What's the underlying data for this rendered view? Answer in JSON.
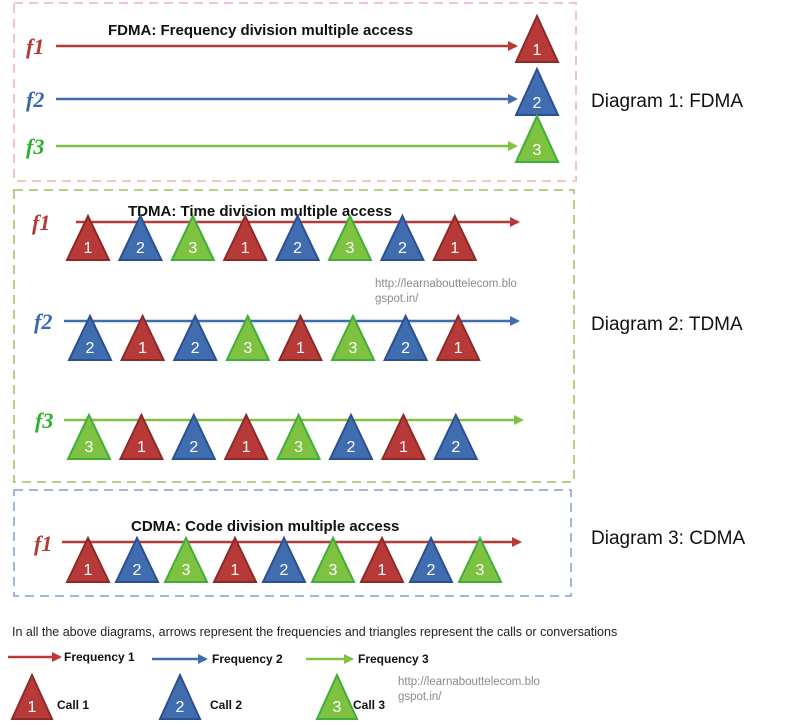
{
  "colors": {
    "call1": "#b83a38",
    "call2": "#3f6db0",
    "call3": "#7fc242",
    "fdma_box": "#f2c4c4",
    "tdma_box": "#b5cf86",
    "cdma_box": "#9db8dc",
    "f1": "#b33a36",
    "f2": "#3a67ad",
    "f3": "#2bb22b"
  },
  "fdma": {
    "title": "FDMA: Frequency division multiple access",
    "side_label": "Diagram 1: FDMA",
    "rows": [
      {
        "label": "f1",
        "calls": [
          1
        ]
      },
      {
        "label": "f2",
        "calls": [
          2
        ]
      },
      {
        "label": "f3",
        "calls": [
          3
        ]
      }
    ]
  },
  "tdma": {
    "title": "TDMA: Time division multiple access",
    "side_label": "Diagram 2: TDMA",
    "watermark_line1": "http://learnabouttelecom.blo",
    "watermark_line2": "gspot.in/",
    "rows": [
      {
        "label": "f1",
        "calls": [
          1,
          2,
          3,
          1,
          2,
          3,
          2,
          1
        ]
      },
      {
        "label": "f2",
        "calls": [
          2,
          1,
          2,
          3,
          1,
          3,
          2,
          1
        ]
      },
      {
        "label": "f3",
        "calls": [
          3,
          1,
          2,
          1,
          3,
          2,
          1,
          2
        ]
      }
    ]
  },
  "cdma": {
    "title": "CDMA: Code division multiple access",
    "side_label": "Diagram 3: CDMA",
    "rows": [
      {
        "label": "f1",
        "calls": [
          1,
          2,
          3,
          1,
          2,
          3,
          1,
          2,
          3
        ]
      }
    ]
  },
  "legend": {
    "caption": "In all the above diagrams, arrows represent the frequencies and triangles represent the calls or conversations",
    "frequencies": [
      {
        "label": "Frequency 1",
        "color_key": "call1"
      },
      {
        "label": "Frequency 2",
        "color_key": "call2"
      },
      {
        "label": "Frequency 3",
        "color_key": "call3"
      }
    ],
    "calls": [
      {
        "label": "Call 1",
        "number": "1"
      },
      {
        "label": "Call 2",
        "number": "2"
      },
      {
        "label": "Call 3",
        "number": "3"
      }
    ],
    "watermark_line1": "http://learnabouttelecom.blo",
    "watermark_line2": "gspot.in/"
  }
}
